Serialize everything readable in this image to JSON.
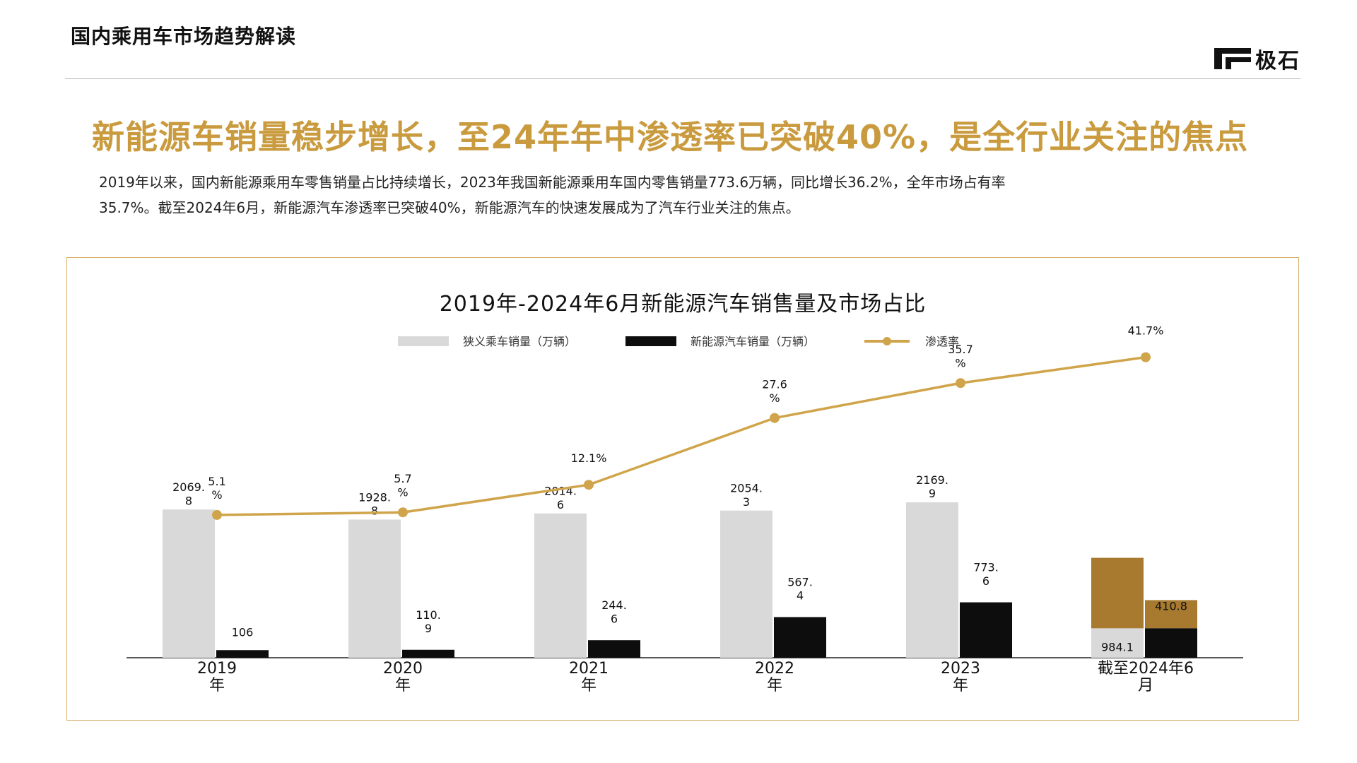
{
  "header": {
    "section_title": "国内乘用车市场趋势解读",
    "logo_text": "极石"
  },
  "headline": "新能源车销量稳步增长，至24年年中渗透率已突破40%，是全行业关注的焦点",
  "intro": {
    "line1": "2019年以来，国内新能源乘用车零售销量占比持续增长，2023年我国新能源乘用车国内零售销量773.6万辆，同比增长36.2%，全年市场占有率",
    "line2": "35.7%。截至2024年6月，新能源汽车渗透率已突破40%，新能源汽车的快速发展成为了汽车行业关注的焦点。"
  },
  "colors": {
    "accent": "#c99b3e",
    "narrow_sales": "#d9d9d9",
    "nev_sales": "#0d0d0d",
    "highlight": "#a87a2f",
    "line": "#d0a44a",
    "panel_border": "#d8b06a"
  },
  "chart_data": {
    "type": "bar",
    "title": "2019年-2024年6月新能源汽车销售量及市场占比",
    "categories": [
      "2019\n年",
      "2020\n年",
      "2021\n年",
      "2022\n年",
      "2023\n年",
      "截至2024年6\n月"
    ],
    "series": [
      {
        "name": "狭义乘车销量（万辆）",
        "kind": "bar",
        "values": [
          2069.8,
          1928.8,
          2014.6,
          2054.3,
          2169.9,
          984.1
        ],
        "labels": [
          "2069.\n8",
          "1928.\n8",
          "2014.\n6",
          "2054.\n3",
          "2169.\n9",
          "984.1"
        ]
      },
      {
        "name": "新能源汽车销量（万辆）",
        "kind": "bar",
        "values": [
          106,
          110.9,
          244.6,
          567.4,
          773.6,
          410.8
        ],
        "labels": [
          "106",
          "110.\n9",
          "244.\n6",
          "567.\n4",
          "773.\n6",
          "410.8"
        ]
      },
      {
        "name": "渗透率",
        "kind": "line",
        "values": [
          5.1,
          5.7,
          12.1,
          27.6,
          35.7,
          41.7
        ],
        "labels": [
          "5.1\n%",
          "5.7\n%",
          "12.1%",
          "27.6\n%",
          "35.7\n%",
          "41.7%"
        ]
      }
    ],
    "legend_position": "top",
    "grid": false
  }
}
